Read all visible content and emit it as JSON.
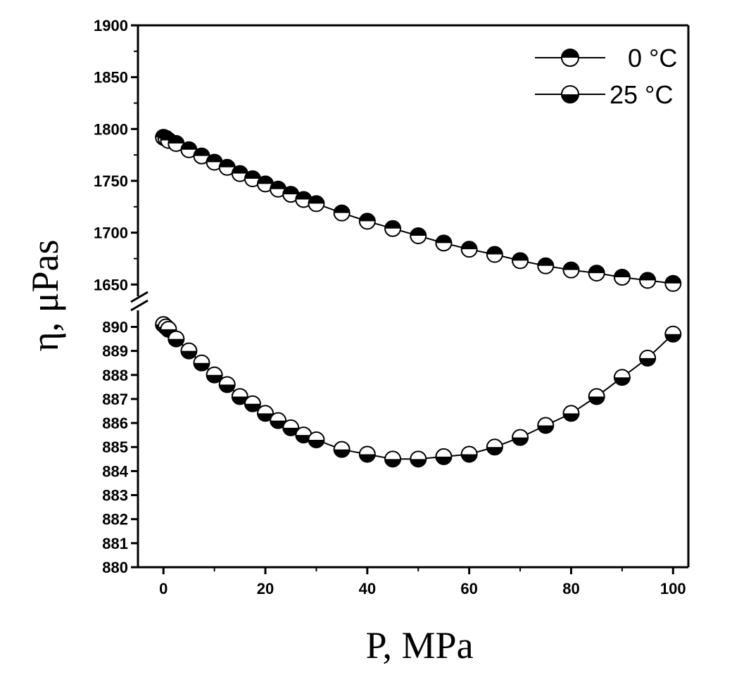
{
  "chart_data": {
    "type": "scatter",
    "title": "",
    "xlabel": "P, MPa",
    "ylabel": "η, μPas",
    "xlim": [
      -5,
      103
    ],
    "x_ticks": [
      0,
      20,
      40,
      60,
      80,
      100
    ],
    "y_axis_broken": true,
    "upper_panel": {
      "ylim": [
        1640,
        1900
      ],
      "y_ticks": [
        1650,
        1700,
        1750,
        1800,
        1850,
        1900
      ]
    },
    "lower_panel": {
      "ylim": [
        880,
        890.6
      ],
      "y_ticks": [
        880,
        881,
        882,
        883,
        884,
        885,
        886,
        887,
        888,
        889,
        890
      ]
    },
    "legend_position": "top-right",
    "grid": false,
    "series": [
      {
        "name": "0 °C",
        "panel": "upper",
        "marker": "circle-top-filled",
        "x": [
          0,
          0.5,
          1,
          2.5,
          5,
          7.5,
          10,
          12.5,
          15,
          17.5,
          20,
          22.5,
          25,
          27.5,
          30,
          35,
          40,
          45,
          50,
          55,
          60,
          65,
          70,
          75,
          80,
          85,
          90,
          95,
          100
        ],
        "y": [
          1792,
          1791,
          1789,
          1786,
          1780,
          1774,
          1768,
          1763,
          1757,
          1752,
          1747,
          1742,
          1737,
          1732,
          1728,
          1719,
          1711,
          1704,
          1697,
          1690,
          1684,
          1679,
          1673,
          1668,
          1664,
          1661,
          1657,
          1654,
          1651
        ]
      },
      {
        "name": "25 °C",
        "panel": "lower",
        "marker": "circle-bottom-filled",
        "x": [
          0,
          0.5,
          1,
          2.5,
          5,
          7.5,
          10,
          12.5,
          15,
          17.5,
          20,
          22.5,
          25,
          27.5,
          30,
          35,
          40,
          45,
          50,
          55,
          60,
          65,
          70,
          75,
          80,
          85,
          90,
          95,
          100
        ],
        "y": [
          890.1,
          890.0,
          889.9,
          889.5,
          889.0,
          888.5,
          888.0,
          887.6,
          887.1,
          886.8,
          886.4,
          886.1,
          885.8,
          885.5,
          885.3,
          884.9,
          884.7,
          884.5,
          884.5,
          884.6,
          884.7,
          885.0,
          885.4,
          885.9,
          886.4,
          887.1,
          887.9,
          888.7,
          889.7
        ]
      }
    ]
  },
  "legend": {
    "items": [
      {
        "label": "0 °C"
      },
      {
        "label": "25 °C"
      }
    ]
  }
}
